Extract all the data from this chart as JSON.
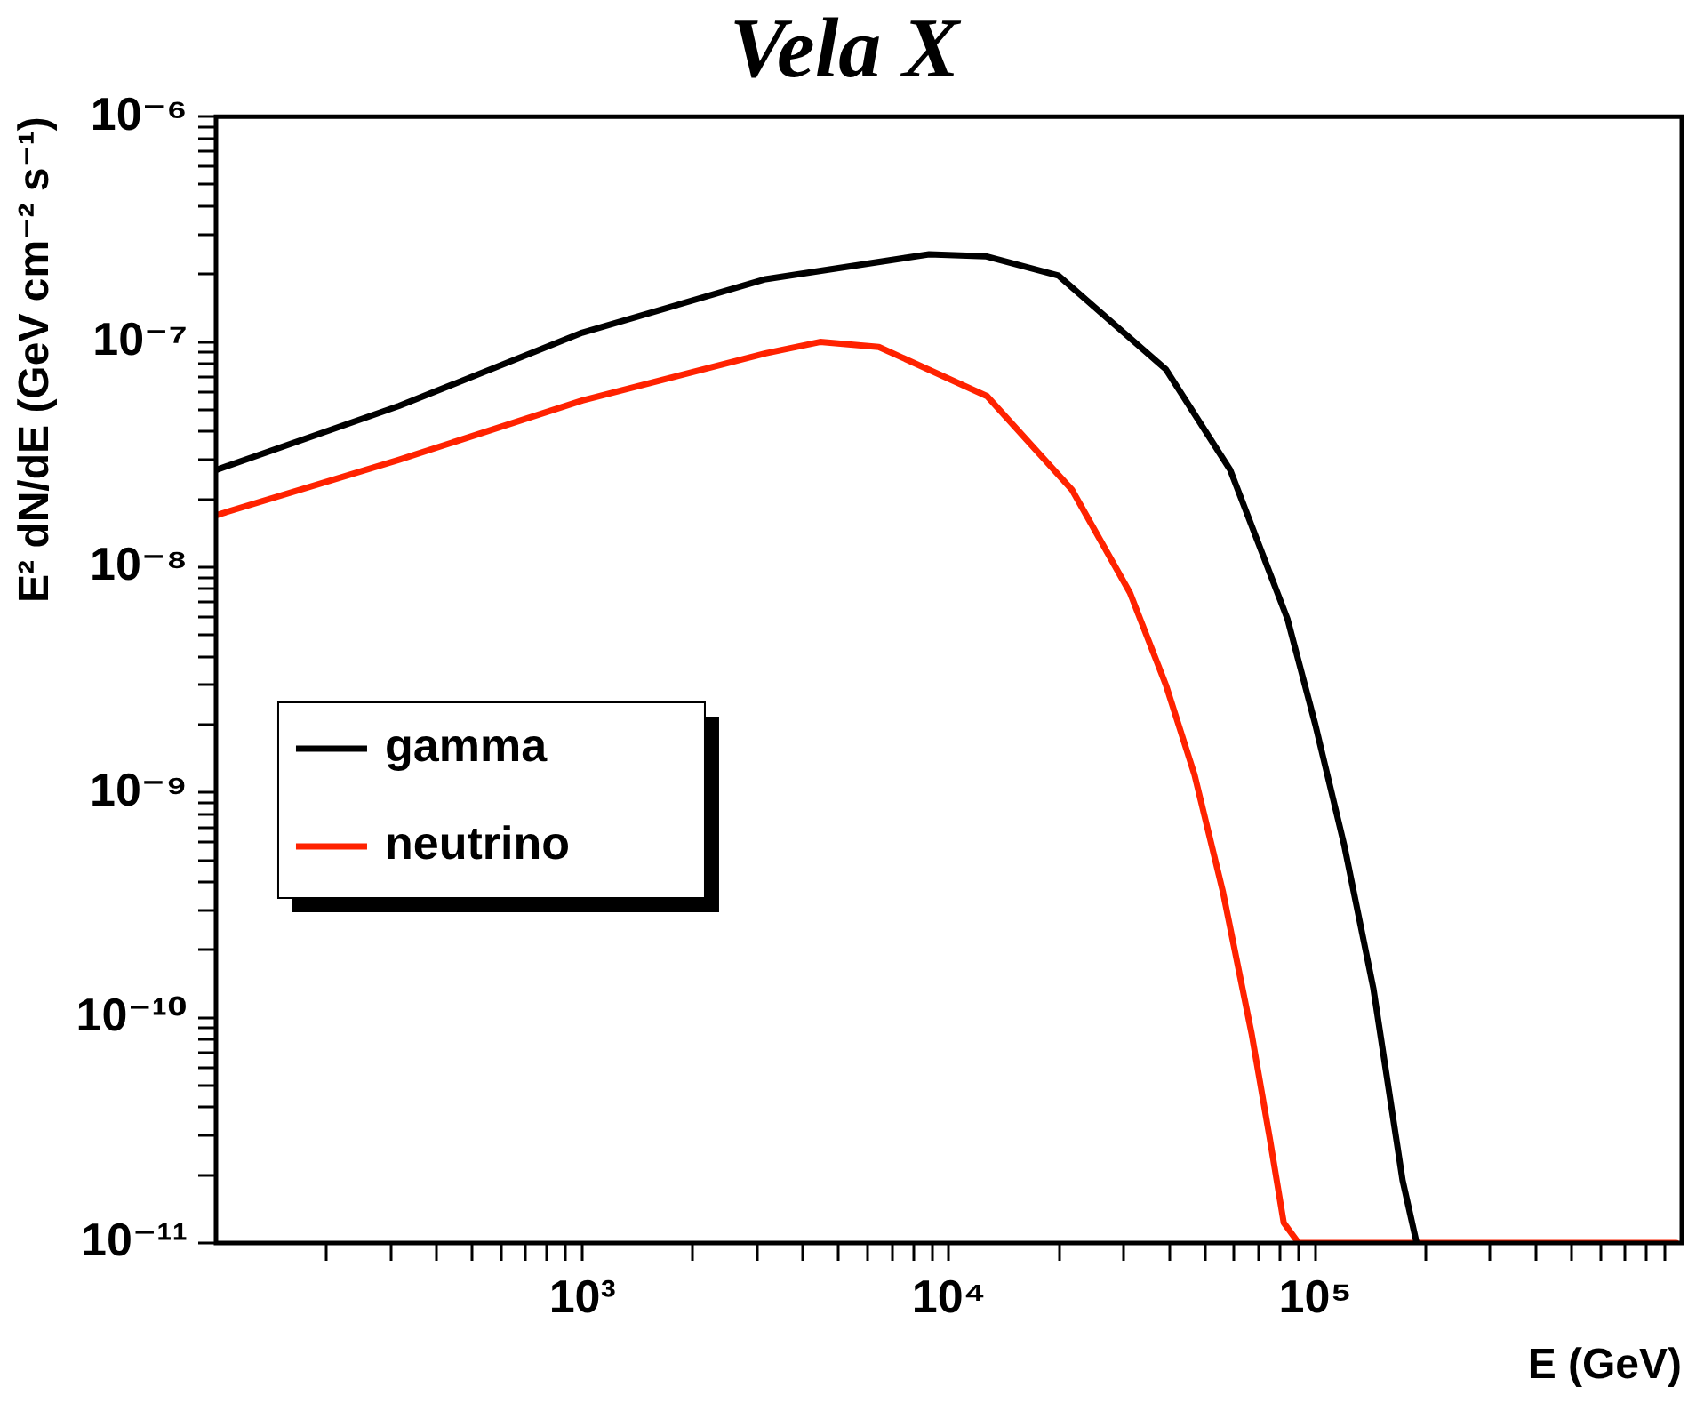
{
  "chart_data": {
    "type": "line",
    "title": "Vela X",
    "xlabel": "E (GeV)",
    "ylabel": "E² dN/dE (GeV cm⁻² s⁻¹)",
    "log": "xy",
    "marker": "none",
    "legend": "left",
    "xlim": [
      100,
      1000000
    ],
    "ylim": [
      1e-11,
      1e-06
    ],
    "xticks": [
      {
        "value": 200,
        "label": null
      },
      {
        "value": 300,
        "label": null
      },
      {
        "value": 400,
        "label": null
      },
      {
        "value": 500,
        "label": null
      },
      {
        "value": 600,
        "label": null
      },
      {
        "value": 700,
        "label": null
      },
      {
        "value": 800,
        "label": null
      },
      {
        "value": 900,
        "label": null
      },
      {
        "value": 1000,
        "label": "10³"
      },
      {
        "value": 2000,
        "label": null
      },
      {
        "value": 3000,
        "label": null
      },
      {
        "value": 4000,
        "label": null
      },
      {
        "value": 5000,
        "label": null
      },
      {
        "value": 6000,
        "label": null
      },
      {
        "value": 7000,
        "label": null
      },
      {
        "value": 8000,
        "label": null
      },
      {
        "value": 9000,
        "label": null
      },
      {
        "value": 10000,
        "label": "10⁴"
      },
      {
        "value": 20000,
        "label": null
      },
      {
        "value": 30000,
        "label": null
      },
      {
        "value": 40000,
        "label": null
      },
      {
        "value": 50000,
        "label": null
      },
      {
        "value": 60000,
        "label": null
      },
      {
        "value": 70000,
        "label": null
      },
      {
        "value": 80000,
        "label": null
      },
      {
        "value": 90000,
        "label": null
      },
      {
        "value": 100000,
        "label": "10⁵"
      },
      {
        "value": 200000,
        "label": null
      },
      {
        "value": 300000,
        "label": null
      },
      {
        "value": 400000,
        "label": null
      },
      {
        "value": 500000,
        "label": null
      },
      {
        "value": 600000,
        "label": null
      },
      {
        "value": 700000,
        "label": null
      },
      {
        "value": 800000,
        "label": null
      },
      {
        "value": 900000,
        "label": null
      }
    ],
    "yticks": [
      {
        "value": 1e-11,
        "label": "10⁻¹¹"
      },
      {
        "value": 2e-11,
        "label": null
      },
      {
        "value": 3e-11,
        "label": null
      },
      {
        "value": 4e-11,
        "label": null
      },
      {
        "value": 5e-11,
        "label": null
      },
      {
        "value": 6e-11,
        "label": null
      },
      {
        "value": 7e-11,
        "label": null
      },
      {
        "value": 8e-11,
        "label": null
      },
      {
        "value": 9e-11,
        "label": null
      },
      {
        "value": 1e-10,
        "label": "10⁻¹⁰"
      },
      {
        "value": 2e-10,
        "label": null
      },
      {
        "value": 3e-10,
        "label": null
      },
      {
        "value": 4e-10,
        "label": null
      },
      {
        "value": 5e-10,
        "label": null
      },
      {
        "value": 6e-10,
        "label": null
      },
      {
        "value": 7e-10,
        "label": null
      },
      {
        "value": 8e-10,
        "label": null
      },
      {
        "value": 9e-10,
        "label": null
      },
      {
        "value": 1e-09,
        "label": "10⁻⁹"
      },
      {
        "value": 2e-09,
        "label": null
      },
      {
        "value": 3e-09,
        "label": null
      },
      {
        "value": 4e-09,
        "label": null
      },
      {
        "value": 5e-09,
        "label": null
      },
      {
        "value": 6e-09,
        "label": null
      },
      {
        "value": 7e-09,
        "label": null
      },
      {
        "value": 8e-09,
        "label": null
      },
      {
        "value": 9e-09,
        "label": null
      },
      {
        "value": 1e-08,
        "label": "10⁻⁸"
      },
      {
        "value": 2e-08,
        "label": null
      },
      {
        "value": 3e-08,
        "label": null
      },
      {
        "value": 4e-08,
        "label": null
      },
      {
        "value": 5e-08,
        "label": null
      },
      {
        "value": 6e-08,
        "label": null
      },
      {
        "value": 7e-08,
        "label": null
      },
      {
        "value": 8e-08,
        "label": null
      },
      {
        "value": 9e-08,
        "label": null
      },
      {
        "value": 1e-07,
        "label": "10⁻⁷"
      },
      {
        "value": 2e-07,
        "label": null
      },
      {
        "value": 3e-07,
        "label": null
      },
      {
        "value": 4e-07,
        "label": null
      },
      {
        "value": 5e-07,
        "label": null
      },
      {
        "value": 6e-07,
        "label": null
      },
      {
        "value": 7e-07,
        "label": null
      },
      {
        "value": 8e-07,
        "label": null
      },
      {
        "value": 9e-07,
        "label": null
      },
      {
        "value": 1e-06,
        "label": "10⁻⁶"
      }
    ],
    "series": [
      {
        "name": "gamma",
        "color": "#000000",
        "x": [
          100,
          316,
          1000,
          3160,
          8830,
          12600,
          19900,
          39100,
          58600,
          83900,
          100000,
          120000,
          144000,
          173000,
          189000
        ],
        "values": [
          2.7e-08,
          5.2e-08,
          1.1e-07,
          1.9e-07,
          2.45e-07,
          2.4e-07,
          1.97e-07,
          7.55e-08,
          2.7e-08,
          5.9e-09,
          2e-09,
          5.8e-10,
          1.35e-10,
          1.9e-11,
          1e-11
        ]
      },
      {
        "name": "neutrino",
        "color": "#ff2200",
        "x": [
          100,
          316,
          1000,
          3160,
          4450,
          6440,
          12700,
          21700,
          31200,
          39100,
          46800,
          56000,
          67000,
          75000,
          82000,
          90000,
          966000
        ],
        "values": [
          1.7e-08,
          3e-08,
          5.5e-08,
          8.9e-08,
          1e-07,
          9.5e-08,
          5.75e-08,
          2.2e-08,
          7.7e-09,
          3e-09,
          1.2e-09,
          3.6e-10,
          8.5e-11,
          2.95e-11,
          1.23e-11,
          1e-11,
          1e-11
        ]
      }
    ]
  }
}
